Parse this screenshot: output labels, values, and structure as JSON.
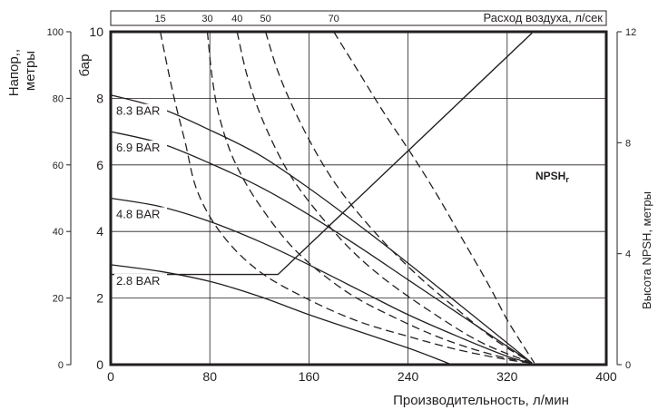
{
  "chart_data": {
    "type": "line",
    "title": "",
    "xlabel": "Производительность, л/мин",
    "xlim": [
      0,
      400
    ],
    "xticks": [
      0,
      80,
      160,
      240,
      320,
      400
    ],
    "ylabel_head": "Напор, метры",
    "ylim_head": [
      0,
      100
    ],
    "yticks_head": [
      0,
      20,
      40,
      60,
      80,
      100
    ],
    "ylabel_pressure": "бар",
    "ylim_pressure": [
      0,
      10
    ],
    "yticks_pressure": [
      0,
      2,
      4,
      6,
      8,
      10
    ],
    "ylabel_npsh": "Высота NPSH, метры",
    "ylim_npsh": [
      0,
      12
    ],
    "yticks_npsh": [
      0,
      4,
      8,
      12
    ],
    "top_axis_label": "Расход воздуха, л/сек",
    "top_axis_ticks": [
      "15",
      "30",
      "40",
      "50",
      "70"
    ],
    "grid": true,
    "pressure_series": [
      {
        "name": "8.3 BAR",
        "points": [
          [
            0,
            8.1
          ],
          [
            40,
            7.7
          ],
          [
            80,
            7.05
          ],
          [
            120,
            6.3
          ],
          [
            160,
            5.3
          ],
          [
            200,
            4.2
          ],
          [
            240,
            3.05
          ],
          [
            280,
            1.85
          ],
          [
            320,
            0.65
          ],
          [
            340,
            0.05
          ]
        ]
      },
      {
        "name": "6.9 BAR",
        "points": [
          [
            0,
            7.0
          ],
          [
            40,
            6.65
          ],
          [
            80,
            6.05
          ],
          [
            120,
            5.35
          ],
          [
            160,
            4.5
          ],
          [
            200,
            3.55
          ],
          [
            240,
            2.55
          ],
          [
            280,
            1.55
          ],
          [
            320,
            0.55
          ],
          [
            340,
            0.05
          ]
        ]
      },
      {
        "name": "4.8 BAR",
        "points": [
          [
            0,
            5.0
          ],
          [
            40,
            4.75
          ],
          [
            80,
            4.3
          ],
          [
            120,
            3.7
          ],
          [
            160,
            3.0
          ],
          [
            200,
            2.25
          ],
          [
            240,
            1.5
          ],
          [
            280,
            0.85
          ],
          [
            320,
            0.25
          ],
          [
            340,
            0.05
          ]
        ]
      },
      {
        "name": "2.8 BAR",
        "points": [
          [
            0,
            3.0
          ],
          [
            40,
            2.8
          ],
          [
            80,
            2.5
          ],
          [
            120,
            2.05
          ],
          [
            160,
            1.5
          ],
          [
            200,
            1.0
          ],
          [
            240,
            0.5
          ],
          [
            265,
            0.15
          ],
          [
            275,
            0.0
          ]
        ]
      }
    ],
    "air_consumption_series": [
      {
        "name": "15",
        "points": [
          [
            40,
            10.0
          ],
          [
            50,
            8.2
          ],
          [
            60,
            6.7
          ],
          [
            70,
            5.2
          ],
          [
            90,
            3.9
          ],
          [
            120,
            2.8
          ],
          [
            160,
            1.95
          ],
          [
            200,
            1.3
          ],
          [
            240,
            0.85
          ],
          [
            280,
            0.45
          ],
          [
            320,
            0.15
          ],
          [
            340,
            0.05
          ]
        ]
      },
      {
        "name": "30",
        "points": [
          [
            78,
            10.0
          ],
          [
            82,
            8.6
          ],
          [
            88,
            7.4
          ],
          [
            100,
            6.1
          ],
          [
            120,
            4.8
          ],
          [
            150,
            3.4
          ],
          [
            190,
            2.2
          ],
          [
            230,
            1.4
          ],
          [
            270,
            0.75
          ],
          [
            310,
            0.28
          ],
          [
            340,
            0.05
          ]
        ]
      },
      {
        "name": "40",
        "points": [
          [
            102,
            10.0
          ],
          [
            110,
            8.7
          ],
          [
            122,
            7.4
          ],
          [
            140,
            6.0
          ],
          [
            160,
            4.9
          ],
          [
            190,
            3.6
          ],
          [
            220,
            2.6
          ],
          [
            260,
            1.55
          ],
          [
            300,
            0.65
          ],
          [
            340,
            0.05
          ]
        ]
      },
      {
        "name": "50",
        "points": [
          [
            125,
            10.0
          ],
          [
            135,
            8.8
          ],
          [
            150,
            7.5
          ],
          [
            170,
            6.1
          ],
          [
            190,
            5.0
          ],
          [
            220,
            3.7
          ],
          [
            250,
            2.6
          ],
          [
            280,
            1.65
          ],
          [
            310,
            0.75
          ],
          [
            340,
            0.05
          ]
        ]
      },
      {
        "name": "70",
        "points": [
          [
            180,
            10.0
          ],
          [
            200,
            8.8
          ],
          [
            220,
            7.6
          ],
          [
            245,
            6.2
          ],
          [
            265,
            5.0
          ],
          [
            285,
            3.7
          ],
          [
            305,
            2.4
          ],
          [
            320,
            1.35
          ],
          [
            335,
            0.45
          ],
          [
            342,
            0.05
          ]
        ]
      }
    ],
    "npsh": {
      "name": "NPSH",
      "subscript": "r",
      "points": [
        [
          0,
          3.25
        ],
        [
          135,
          3.25
        ],
        [
          340,
          11.95
        ]
      ]
    },
    "curve_labels": [
      "8.3 BAR",
      "6.9 BAR",
      "4.8 BAR",
      "2.8 BAR"
    ]
  }
}
